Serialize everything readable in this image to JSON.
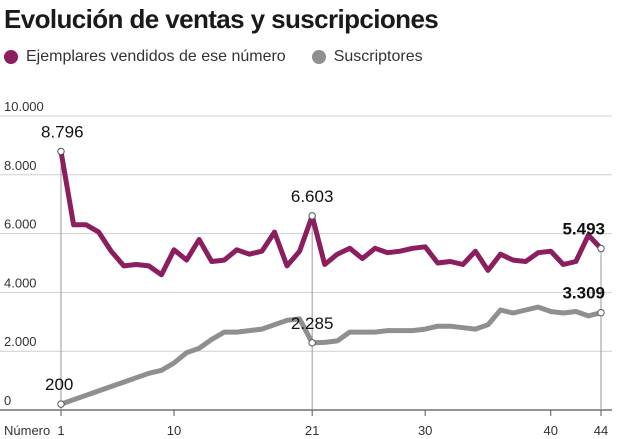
{
  "chart_data": {
    "type": "line",
    "title": "Evolución de ventas y suscripciones",
    "xlabel": "Número",
    "x_ticks": [
      1,
      10,
      21,
      30,
      40,
      44
    ],
    "xlim": [
      1,
      44
    ],
    "y_ticks": [
      "0",
      "2.000",
      "4.000",
      "6.000",
      "8.000",
      "10.000"
    ],
    "ylim": [
      0,
      10000
    ],
    "grid": true,
    "legend_position": "top-left",
    "series": [
      {
        "name": "Ejemplares vendidos de ese número",
        "color": "#8b1e5f",
        "x": [
          1,
          2,
          3,
          4,
          5,
          6,
          7,
          8,
          9,
          10,
          11,
          12,
          13,
          14,
          15,
          16,
          17,
          18,
          19,
          20,
          21,
          22,
          23,
          24,
          25,
          26,
          27,
          28,
          29,
          30,
          31,
          32,
          33,
          34,
          35,
          36,
          37,
          38,
          39,
          40,
          41,
          42,
          43,
          44
        ],
        "values": [
          8796,
          6300,
          6300,
          6050,
          5400,
          4900,
          4950,
          4900,
          4600,
          5450,
          5100,
          5800,
          5050,
          5100,
          5450,
          5300,
          5400,
          6050,
          4900,
          5400,
          6603,
          4950,
          5300,
          5500,
          5150,
          5500,
          5350,
          5400,
          5500,
          5550,
          5000,
          5050,
          4950,
          5400,
          4750,
          5300,
          5100,
          5050,
          5350,
          5400,
          4950,
          5050,
          5950,
          5493
        ],
        "labels": [
          {
            "x": 1,
            "text": "8.796"
          },
          {
            "x": 21,
            "text": "6.603"
          },
          {
            "x": 44,
            "text": "5.493"
          }
        ]
      },
      {
        "name": "Suscriptores",
        "color": "#8f8f8f",
        "x": [
          1,
          2,
          3,
          4,
          5,
          6,
          7,
          8,
          9,
          10,
          11,
          12,
          13,
          14,
          15,
          16,
          17,
          18,
          19,
          20,
          21,
          22,
          23,
          24,
          25,
          26,
          27,
          28,
          29,
          30,
          31,
          32,
          33,
          34,
          35,
          36,
          37,
          38,
          39,
          40,
          41,
          42,
          43,
          44
        ],
        "values": [
          200,
          350,
          500,
          650,
          800,
          950,
          1100,
          1250,
          1350,
          1600,
          1950,
          2100,
          2400,
          2650,
          2650,
          2700,
          2750,
          2900,
          3050,
          3100,
          2285,
          2300,
          2350,
          2650,
          2650,
          2650,
          2700,
          2700,
          2700,
          2750,
          2850,
          2850,
          2800,
          2750,
          2900,
          3400,
          3300,
          3400,
          3500,
          3350,
          3300,
          3350,
          3200,
          3309
        ],
        "labels": [
          {
            "x": 1,
            "text": "200"
          },
          {
            "x": 21,
            "text": "2.285"
          },
          {
            "x": 44,
            "text": "3.309"
          }
        ]
      }
    ]
  }
}
